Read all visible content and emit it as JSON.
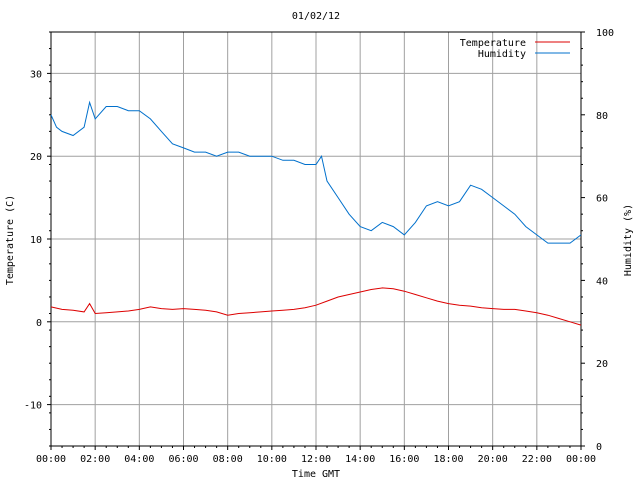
{
  "chart_data": {
    "type": "line",
    "title": "01/02/12",
    "xlabel": "Time GMT",
    "ylabel_left": "Temperature (C)",
    "ylabel_right": "Humidity (%)",
    "x_ticks": [
      "00:00",
      "02:00",
      "04:00",
      "06:00",
      "08:00",
      "10:00",
      "12:00",
      "14:00",
      "16:00",
      "18:00",
      "20:00",
      "22:00",
      "00:00"
    ],
    "xlim_hours": [
      0,
      24
    ],
    "ylim_left": [
      -15,
      35
    ],
    "ylim_right": [
      0,
      100
    ],
    "y_ticks_left": [
      -10,
      0,
      10,
      20,
      30
    ],
    "y_ticks_right": [
      0,
      20,
      40,
      60,
      80,
      100
    ],
    "grid": true,
    "legend_position": "top-right",
    "series": [
      {
        "name": "Temperature",
        "axis": "left",
        "color": "#dd0000",
        "x_hours": [
          0,
          0.5,
          1,
          1.5,
          1.75,
          2,
          2.5,
          3,
          3.5,
          4,
          4.5,
          5,
          5.5,
          6,
          6.5,
          7,
          7.5,
          8,
          8.5,
          9,
          9.5,
          10,
          10.5,
          11,
          11.5,
          12,
          12.5,
          13,
          13.5,
          14,
          14.5,
          15,
          15.5,
          16,
          16.5,
          17,
          17.5,
          18,
          18.5,
          19,
          19.5,
          20,
          20.5,
          21,
          21.5,
          22,
          22.5,
          23,
          23.5,
          24
        ],
        "values": [
          1.8,
          1.5,
          1.4,
          1.2,
          2.2,
          1.0,
          1.1,
          1.2,
          1.3,
          1.5,
          1.8,
          1.6,
          1.5,
          1.6,
          1.5,
          1.4,
          1.2,
          0.8,
          1.0,
          1.1,
          1.2,
          1.3,
          1.4,
          1.5,
          1.7,
          2.0,
          2.5,
          3.0,
          3.3,
          3.6,
          3.9,
          4.1,
          4.0,
          3.7,
          3.3,
          2.9,
          2.5,
          2.2,
          2.0,
          1.9,
          1.7,
          1.6,
          1.5,
          1.5,
          1.3,
          1.1,
          0.8,
          0.4,
          0.0,
          -0.4
        ]
      },
      {
        "name": "Humidity",
        "axis": "right",
        "color": "#0070cc",
        "x_hours": [
          0,
          0.25,
          0.5,
          1,
          1.5,
          1.75,
          2,
          2.5,
          3,
          3.5,
          4,
          4.5,
          5,
          5.5,
          6,
          6.5,
          7,
          7.5,
          8,
          8.5,
          9,
          9.5,
          10,
          10.5,
          11,
          11.5,
          12,
          12.25,
          12.5,
          13,
          13.5,
          14,
          14.5,
          15,
          15.5,
          16,
          16.5,
          17,
          17.5,
          18,
          18.5,
          19,
          19.5,
          20,
          20.5,
          21,
          21.5,
          22,
          22.5,
          23,
          23.5,
          24
        ],
        "values": [
          80,
          77,
          76,
          75,
          77,
          83,
          79,
          82,
          82,
          81,
          81,
          79,
          76,
          73,
          72,
          71,
          71,
          70,
          71,
          71,
          70,
          70,
          70,
          69,
          69,
          68,
          68,
          70,
          64,
          60,
          56,
          53,
          52,
          54,
          53,
          51,
          54,
          58,
          59,
          58,
          59,
          63,
          62,
          60,
          58,
          56,
          53,
          51,
          49,
          49,
          49,
          51
        ]
      }
    ]
  }
}
